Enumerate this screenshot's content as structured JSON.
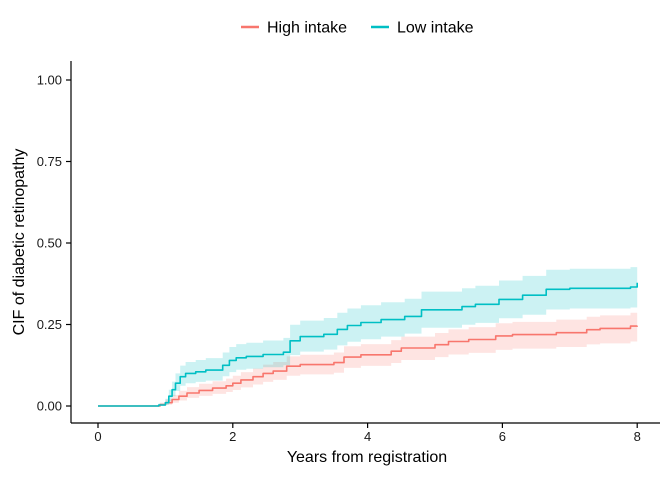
{
  "chart_data": {
    "type": "line",
    "subtype": "step-cif-with-confidence-bands",
    "xlabel": "Years from registration",
    "ylabel": "CIF of diabetic retinopathy",
    "xlim": [
      0,
      8
    ],
    "ylim": [
      0,
      1
    ],
    "xticks": [
      0,
      2,
      4,
      6,
      8
    ],
    "ytick_labels": [
      "0.00",
      "0.25",
      "0.50",
      "0.75",
      "1.00"
    ],
    "ytick_values": [
      0,
      0.25,
      0.5,
      0.75,
      1.0
    ],
    "grid": false,
    "legend_position": "top-center",
    "step_interpolation": "step-after",
    "series": [
      {
        "name": "High intake",
        "color": "#F8766D",
        "band": "confidence interval, same hue at 20% opacity",
        "points_format": [
          "year",
          "estimate",
          "ci_lower",
          "ci_upper"
        ],
        "points": [
          [
            0.0,
            0.0,
            0.0,
            0.0
          ],
          [
            0.78,
            0.0,
            0.0,
            0.0
          ],
          [
            0.92,
            0.004,
            0.0,
            0.01
          ],
          [
            1.0,
            0.01,
            0.004,
            0.02
          ],
          [
            1.1,
            0.02,
            0.01,
            0.034
          ],
          [
            1.2,
            0.03,
            0.017,
            0.047
          ],
          [
            1.32,
            0.04,
            0.025,
            0.058
          ],
          [
            1.5,
            0.048,
            0.031,
            0.068
          ],
          [
            1.7,
            0.055,
            0.037,
            0.076
          ],
          [
            1.9,
            0.062,
            0.043,
            0.084
          ],
          [
            2.0,
            0.07,
            0.049,
            0.093
          ],
          [
            2.12,
            0.08,
            0.057,
            0.104
          ],
          [
            2.3,
            0.09,
            0.066,
            0.115
          ],
          [
            2.45,
            0.1,
            0.074,
            0.127
          ],
          [
            2.6,
            0.107,
            0.08,
            0.135
          ],
          [
            2.8,
            0.122,
            0.093,
            0.152
          ],
          [
            3.0,
            0.127,
            0.097,
            0.157
          ],
          [
            3.5,
            0.133,
            0.102,
            0.164
          ],
          [
            3.65,
            0.15,
            0.117,
            0.183
          ],
          [
            3.9,
            0.157,
            0.123,
            0.19
          ],
          [
            4.35,
            0.168,
            0.132,
            0.202
          ],
          [
            4.5,
            0.178,
            0.141,
            0.213
          ],
          [
            5.0,
            0.188,
            0.15,
            0.224
          ],
          [
            5.2,
            0.198,
            0.158,
            0.235
          ],
          [
            5.5,
            0.204,
            0.163,
            0.242
          ],
          [
            5.9,
            0.215,
            0.172,
            0.254
          ],
          [
            6.15,
            0.219,
            0.176,
            0.258
          ],
          [
            6.8,
            0.225,
            0.181,
            0.265
          ],
          [
            7.25,
            0.234,
            0.189,
            0.274
          ],
          [
            7.45,
            0.238,
            0.192,
            0.278
          ],
          [
            7.9,
            0.245,
            0.198,
            0.286
          ],
          [
            8.0,
            0.246,
            0.199,
            0.287
          ]
        ]
      },
      {
        "name": "Low intake",
        "color": "#00BFC4",
        "band": "confidence interval, same hue at 20% opacity",
        "points_format": [
          "year",
          "estimate",
          "ci_lower",
          "ci_upper"
        ],
        "points": [
          [
            0.0,
            0.0,
            0.0,
            0.0
          ],
          [
            0.75,
            0.0,
            0.0,
            0.0
          ],
          [
            0.9,
            0.003,
            0.0,
            0.008
          ],
          [
            1.0,
            0.01,
            0.003,
            0.022
          ],
          [
            1.05,
            0.03,
            0.015,
            0.05
          ],
          [
            1.1,
            0.05,
            0.03,
            0.075
          ],
          [
            1.15,
            0.07,
            0.046,
            0.1
          ],
          [
            1.22,
            0.09,
            0.062,
            0.124
          ],
          [
            1.3,
            0.1,
            0.07,
            0.135
          ],
          [
            1.45,
            0.105,
            0.074,
            0.141
          ],
          [
            1.6,
            0.11,
            0.078,
            0.147
          ],
          [
            1.85,
            0.125,
            0.091,
            0.164
          ],
          [
            1.95,
            0.14,
            0.104,
            0.181
          ],
          [
            2.05,
            0.148,
            0.111,
            0.19
          ],
          [
            2.2,
            0.152,
            0.114,
            0.194
          ],
          [
            2.45,
            0.158,
            0.119,
            0.201
          ],
          [
            2.75,
            0.165,
            0.125,
            0.209
          ],
          [
            2.85,
            0.2,
            0.156,
            0.249
          ],
          [
            3.0,
            0.213,
            0.167,
            0.262
          ],
          [
            3.35,
            0.22,
            0.173,
            0.27
          ],
          [
            3.55,
            0.235,
            0.186,
            0.286
          ],
          [
            3.7,
            0.247,
            0.197,
            0.299
          ],
          [
            3.9,
            0.256,
            0.205,
            0.309
          ],
          [
            4.2,
            0.265,
            0.213,
            0.318
          ],
          [
            4.55,
            0.275,
            0.222,
            0.329
          ],
          [
            4.8,
            0.295,
            0.24,
            0.351
          ],
          [
            5.4,
            0.305,
            0.249,
            0.361
          ],
          [
            5.6,
            0.312,
            0.255,
            0.369
          ],
          [
            5.95,
            0.327,
            0.269,
            0.385
          ],
          [
            6.3,
            0.34,
            0.28,
            0.399
          ],
          [
            6.65,
            0.358,
            0.296,
            0.418
          ],
          [
            7.0,
            0.361,
            0.299,
            0.421
          ],
          [
            7.9,
            0.365,
            0.302,
            0.426
          ],
          [
            8.0,
            0.378,
            0.313,
            0.442
          ]
        ]
      }
    ]
  },
  "colors": {
    "high_intake_line": "#F8766D",
    "low_intake_line": "#00BFC4",
    "axis": "#000000",
    "background": "#FFFFFF"
  }
}
